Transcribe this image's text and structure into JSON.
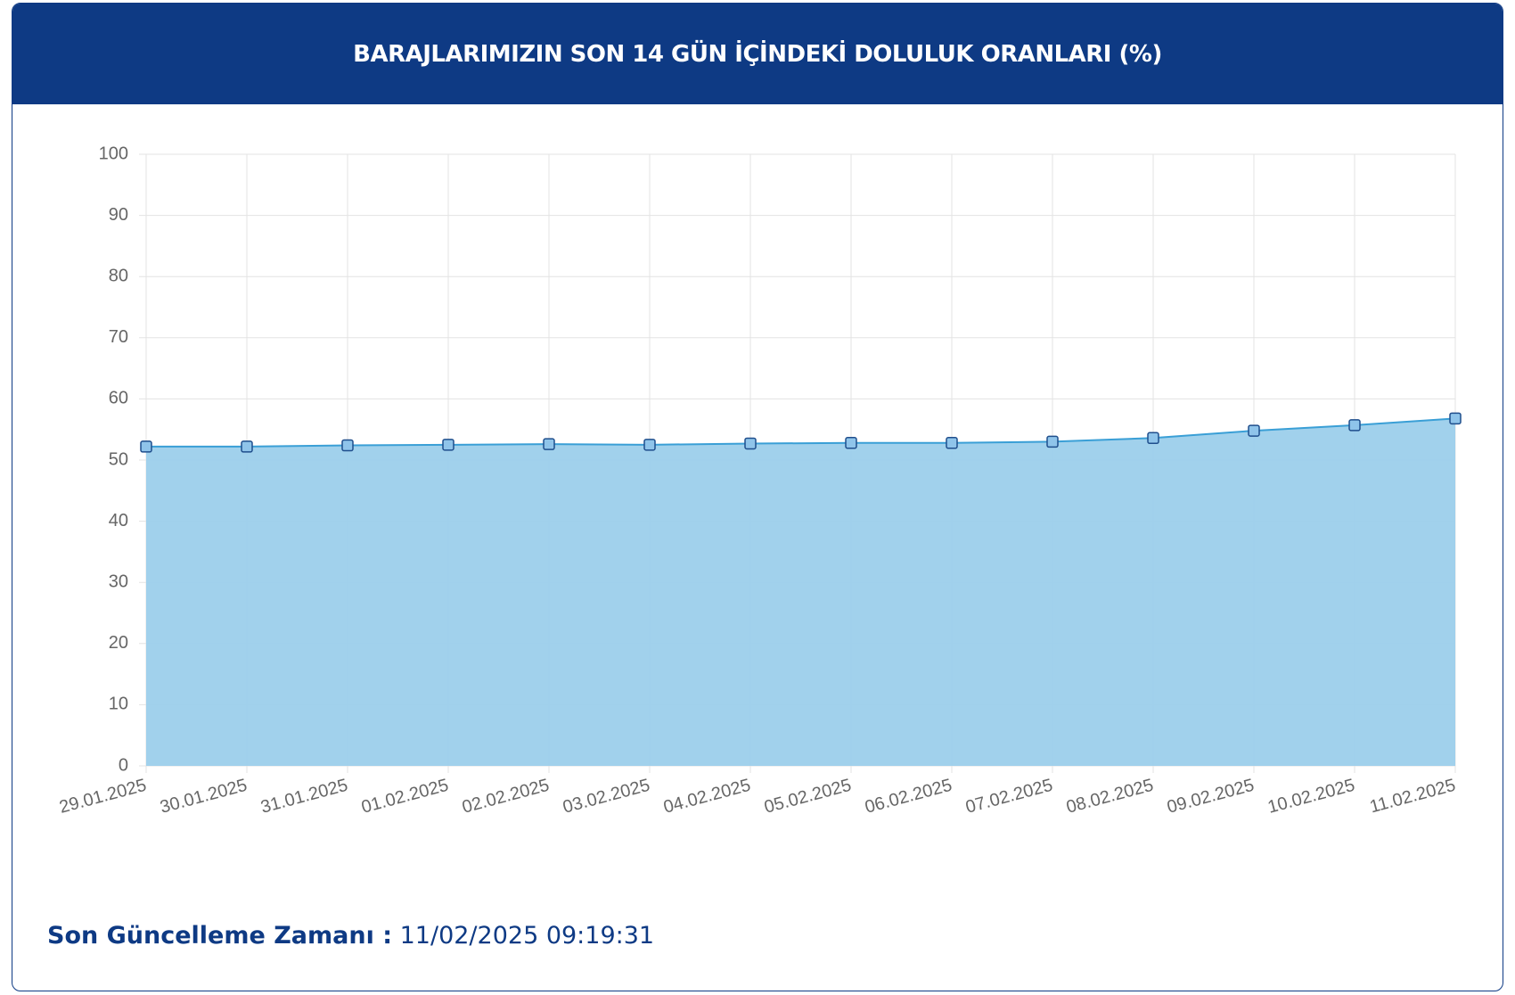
{
  "chart_data": {
    "type": "area",
    "title": "BARAJLARIMIZIN SON 14 GÜN İÇİNDEKİ DOLULUK ORANLARI (%)",
    "categories": [
      "29.01.2025",
      "30.01.2025",
      "31.01.2025",
      "01.02.2025",
      "02.02.2025",
      "03.02.2025",
      "04.02.2025",
      "05.02.2025",
      "06.02.2025",
      "07.02.2025",
      "08.02.2025",
      "09.02.2025",
      "10.02.2025",
      "11.02.2025"
    ],
    "values": [
      52.2,
      52.2,
      52.4,
      52.5,
      52.6,
      52.5,
      52.7,
      52.8,
      52.8,
      53.0,
      53.6,
      54.8,
      55.7,
      56.8
    ],
    "color": "#3a9fd6",
    "fill_color": "#9ccfeb",
    "marker_color": "#8fc4ea",
    "ylim": [
      0,
      100
    ],
    "yticks": [
      0,
      10,
      20,
      30,
      40,
      50,
      60,
      70,
      80,
      90,
      100
    ],
    "grid": true
  },
  "footer": {
    "label": "Son Güncelleme Zamanı :",
    "value": "11/02/2025 09:19:31"
  }
}
